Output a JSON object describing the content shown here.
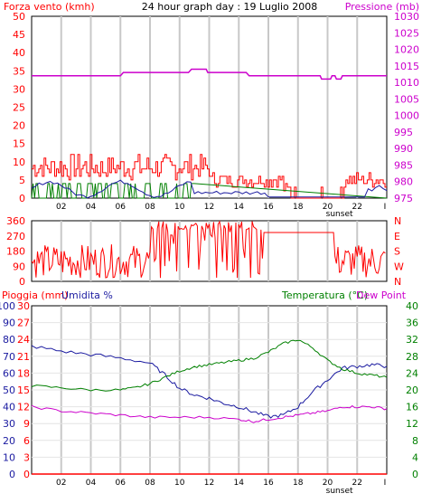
{
  "header": {
    "left_title": "Forza vento (kmh)",
    "center_title": "24 hour graph day : 19 Luglio 2008",
    "right_title": "Pressione (mb)"
  },
  "colors": {
    "wind_gust": "#ff0000",
    "wind_avg": "#1a1aa0",
    "wind_green": "#008000",
    "pressure": "#cc00cc",
    "direction": "#ff0000",
    "temperature": "#008000",
    "humidity": "#1a1aa0",
    "dewpoint": "#cc00cc",
    "rain": "#ff0000",
    "grid": "#c8c8c8",
    "frame": "#000000"
  },
  "x_axis": {
    "ticks": [
      "02",
      "04",
      "06",
      "08",
      "10",
      "12",
      "14",
      "16",
      "18",
      "20",
      "22",
      "I"
    ],
    "sunset_label": "sunset"
  },
  "wind_pressure_chart": {
    "left_ticks": [
      "0",
      "5",
      "10",
      "15",
      "20",
      "25",
      "30",
      "35",
      "40",
      "45",
      "50"
    ],
    "right_ticks": [
      "975",
      "980",
      "985",
      "990",
      "995",
      "1000",
      "1005",
      "1010",
      "1015",
      "1020",
      "1025",
      "1030"
    ]
  },
  "direction_chart": {
    "left_ticks": [
      "0",
      "90",
      "180",
      "270",
      "360"
    ],
    "right_labels": [
      "N",
      "W",
      "S",
      "E",
      "N"
    ]
  },
  "bottom_chart": {
    "title_left_a": "Pioggia (mm)",
    "title_left_b": "Umidita %",
    "title_right_a": "Temperatura (°C)",
    "title_right_b": "Dew Point",
    "humidity_ticks": [
      "0",
      "10",
      "20",
      "30",
      "40",
      "50",
      "60",
      "70",
      "80",
      "90",
      "100"
    ],
    "rain_ticks": [
      "0",
      "3",
      "6",
      "9",
      "12",
      "15",
      "18",
      "21",
      "24",
      "27",
      "30"
    ],
    "temp_ticks": [
      "0",
      "4",
      "8",
      "12",
      "16",
      "20",
      "24",
      "28",
      "32",
      "36",
      "40"
    ]
  },
  "chart_data": [
    {
      "type": "line",
      "title": "24 hour graph day : 19 Luglio 2008",
      "x_range_hours": [
        0,
        24
      ],
      "y_left": {
        "label": "Forza vento (kmh)",
        "range": [
          0,
          50
        ]
      },
      "y_right": {
        "label": "Pressione (mb)",
        "range": [
          975,
          1030
        ]
      },
      "grid": true,
      "series": [
        {
          "name": "Pressione (mb)",
          "axis": "right",
          "points": [
            [
              0,
              1012
            ],
            [
              6,
              1012
            ],
            [
              6.2,
              1013
            ],
            [
              10.6,
              1013
            ],
            [
              10.8,
              1014
            ],
            [
              11.8,
              1014
            ],
            [
              11.9,
              1013
            ],
            [
              14.5,
              1013
            ],
            [
              14.7,
              1012
            ],
            [
              19.5,
              1012
            ],
            [
              19.6,
              1011
            ],
            [
              20.2,
              1011
            ],
            [
              20.3,
              1012
            ],
            [
              20.5,
              1012
            ],
            [
              20.6,
              1011
            ],
            [
              20.9,
              1011
            ],
            [
              21,
              1012
            ],
            [
              24,
              1012
            ]
          ]
        }
      ]
    },
    {
      "type": "line",
      "title": "",
      "x_range_hours": [
        0,
        24
      ],
      "y_left": {
        "label": "",
        "range": [
          0,
          360
        ]
      },
      "grid": true,
      "series": []
    },
    {
      "type": "line",
      "title": "",
      "x_range_hours": [
        0,
        24
      ],
      "y_left": {
        "label": "Umidita %",
        "range": [
          0,
          100
        ]
      },
      "y_left_outer": {
        "label": "Pioggia (mm)",
        "range": [
          0,
          30
        ]
      },
      "y_right": {
        "label": "Temperatura (°C)",
        "range": [
          0,
          40
        ]
      },
      "grid": true,
      "series": [
        {
          "name": "Umidita %",
          "axis": "left",
          "points": [
            [
              0,
              76
            ],
            [
              2,
              73
            ],
            [
              4,
              71
            ],
            [
              6,
              69
            ],
            [
              8,
              66
            ],
            [
              9,
              59
            ],
            [
              10,
              51
            ],
            [
              11,
              47
            ],
            [
              12,
              45
            ],
            [
              13,
              42
            ],
            [
              14,
              40
            ],
            [
              15,
              37
            ],
            [
              16,
              34
            ],
            [
              17,
              35
            ],
            [
              18,
              40
            ],
            [
              19,
              49
            ],
            [
              20,
              56
            ],
            [
              21,
              63
            ],
            [
              22,
              64
            ],
            [
              23,
              65
            ],
            [
              24,
              64
            ]
          ]
        },
        {
          "name": "Temperatura (°C)",
          "axis": "right",
          "points": [
            [
              0,
              21
            ],
            [
              2,
              20.5
            ],
            [
              4,
              20
            ],
            [
              6,
              20
            ],
            [
              7,
              20.5
            ],
            [
              8,
              21.5
            ],
            [
              9,
              23
            ],
            [
              10,
              24.5
            ],
            [
              11,
              25.5
            ],
            [
              12,
              26
            ],
            [
              13,
              26.5
            ],
            [
              14,
              27
            ],
            [
              15,
              27.5
            ],
            [
              16,
              29
            ],
            [
              17,
              31
            ],
            [
              18,
              32
            ],
            [
              19,
              30
            ],
            [
              20,
              27
            ],
            [
              21,
              25
            ],
            [
              22,
              24
            ],
            [
              23,
              23.5
            ],
            [
              24,
              23
            ]
          ]
        },
        {
          "name": "Dew Point",
          "axis": "right",
          "points": [
            [
              0,
              16
            ],
            [
              2,
              15
            ],
            [
              4,
              14.5
            ],
            [
              6,
              14
            ],
            [
              8,
              13.5
            ],
            [
              10,
              13.5
            ],
            [
              12,
              13.5
            ],
            [
              14,
              13
            ],
            [
              15,
              12.5
            ],
            [
              16,
              13
            ],
            [
              17,
              13.5
            ],
            [
              18,
              14
            ],
            [
              19,
              14.5
            ],
            [
              20,
              15
            ],
            [
              21,
              16
            ],
            [
              22,
              16
            ],
            [
              23,
              16
            ],
            [
              24,
              15.5
            ]
          ]
        },
        {
          "name": "Pioggia (mm)",
          "axis": "left_outer",
          "points": [
            [
              0,
              0
            ],
            [
              24,
              0
            ]
          ]
        }
      ]
    }
  ]
}
